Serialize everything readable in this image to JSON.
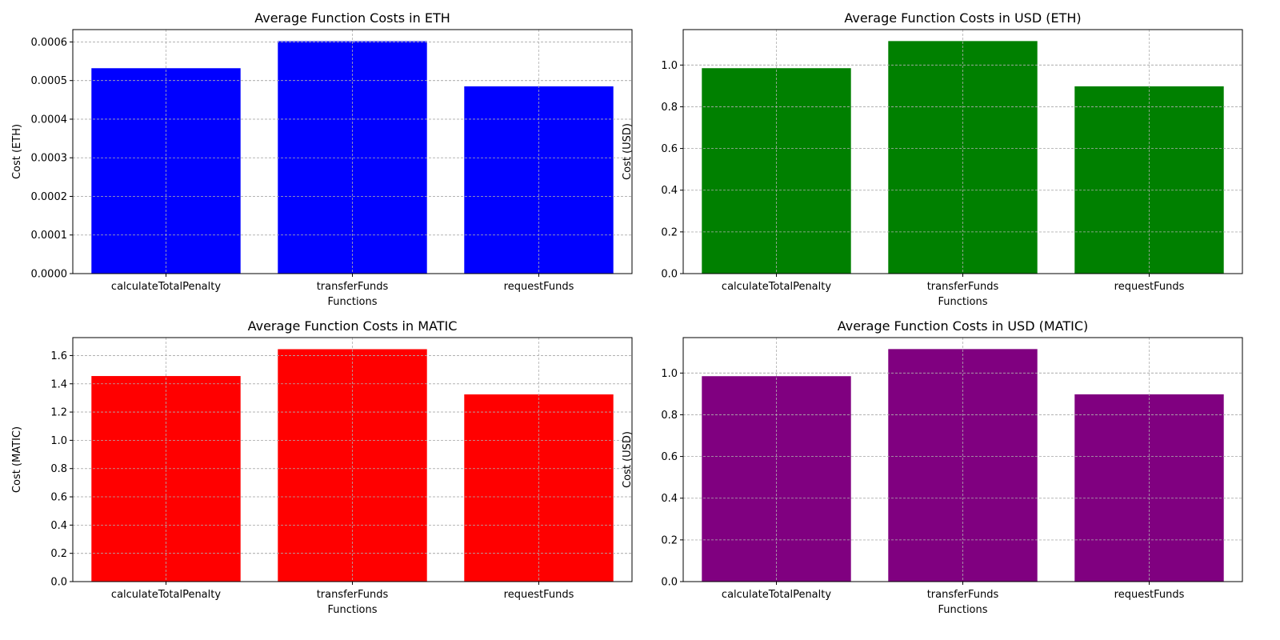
{
  "chart_data": [
    {
      "type": "bar",
      "title": "Average Function Costs in ETH",
      "xlabel": "Functions",
      "ylabel": "Cost (ETH)",
      "categories": [
        "calculateTotalPenalty",
        "transferFunds",
        "requestFunds"
      ],
      "values": [
        0.000532,
        0.000602,
        0.000485
      ],
      "ylim": [
        0,
        0.000632
      ],
      "yticks": [
        "0.0000",
        "0.0001",
        "0.0002",
        "0.0003",
        "0.0004",
        "0.0005",
        "0.0006"
      ],
      "ytick_values": [
        0,
        0.0001,
        0.0002,
        0.0003,
        0.0004,
        0.0005,
        0.0006
      ],
      "color": "#0000ff",
      "grid": true
    },
    {
      "type": "bar",
      "title": "Average Function Costs in USD (ETH)",
      "xlabel": "Functions",
      "ylabel": "Cost (USD)",
      "categories": [
        "calculateTotalPenalty",
        "transferFunds",
        "requestFunds"
      ],
      "values": [
        0.985,
        1.115,
        0.898
      ],
      "ylim": [
        0,
        1.17
      ],
      "yticks": [
        "0.0",
        "0.2",
        "0.4",
        "0.6",
        "0.8",
        "1.0"
      ],
      "ytick_values": [
        0,
        0.2,
        0.4,
        0.6,
        0.8,
        1.0
      ],
      "color": "#008000",
      "grid": true
    },
    {
      "type": "bar",
      "title": "Average Function Costs in MATIC",
      "xlabel": "Functions",
      "ylabel": "Cost (MATIC)",
      "categories": [
        "calculateTotalPenalty",
        "transferFunds",
        "requestFunds"
      ],
      "values": [
        1.455,
        1.645,
        1.325
      ],
      "ylim": [
        0,
        1.727
      ],
      "yticks": [
        "0.0",
        "0.2",
        "0.4",
        "0.6",
        "0.8",
        "1.0",
        "1.2",
        "1.4",
        "1.6"
      ],
      "ytick_values": [
        0,
        0.2,
        0.4,
        0.6,
        0.8,
        1.0,
        1.2,
        1.4,
        1.6
      ],
      "color": "#ff0000",
      "grid": true
    },
    {
      "type": "bar",
      "title": "Average Function Costs in USD (MATIC)",
      "xlabel": "Functions",
      "ylabel": "Cost (USD)",
      "categories": [
        "calculateTotalPenalty",
        "transferFunds",
        "requestFunds"
      ],
      "values": [
        0.985,
        1.115,
        0.898
      ],
      "ylim": [
        0,
        1.17
      ],
      "yticks": [
        "0.0",
        "0.2",
        "0.4",
        "0.6",
        "0.8",
        "1.0"
      ],
      "ytick_values": [
        0,
        0.2,
        0.4,
        0.6,
        0.8,
        1.0
      ],
      "color": "#800080",
      "grid": true
    }
  ]
}
